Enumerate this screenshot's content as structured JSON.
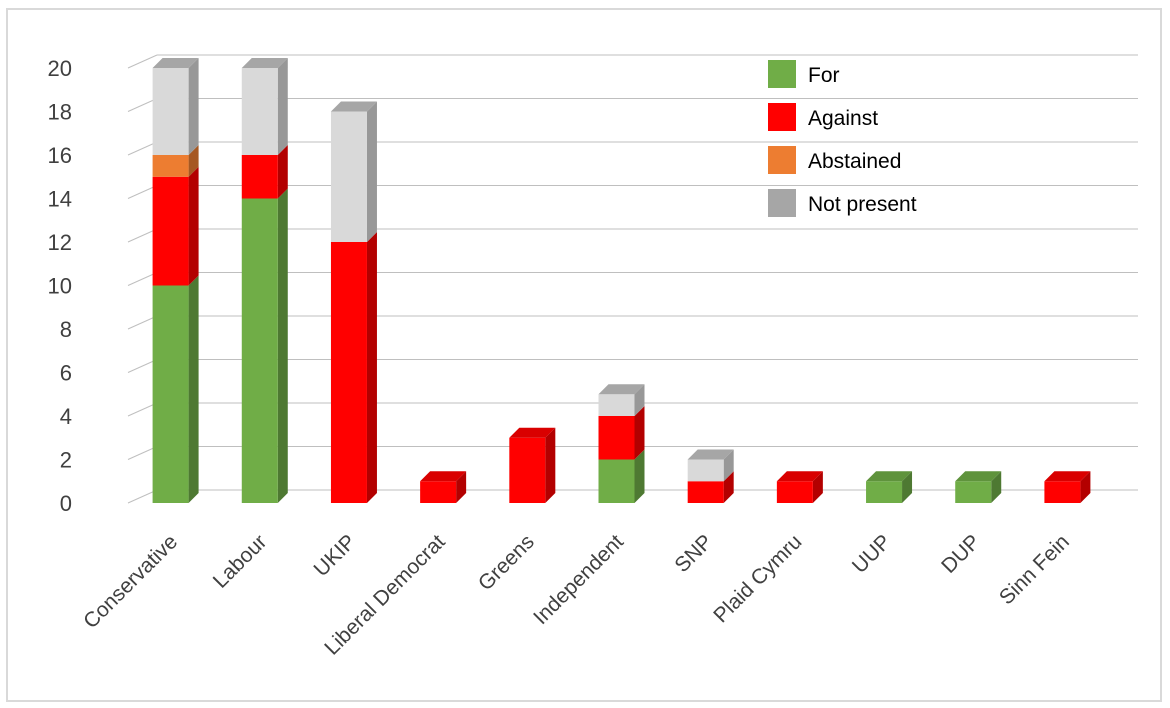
{
  "chart_data": {
    "type": "bar",
    "stacked": true,
    "three_d": true,
    "title": "",
    "xlabel": "",
    "ylabel": "",
    "ylim": [
      0,
      20
    ],
    "ytick_step": 2,
    "grid": true,
    "legend_position": "top-right",
    "categories": [
      "Conservative",
      "Labour",
      "UKIP",
      "Liberal Democrat",
      "Greens",
      "Independent",
      "SNP",
      "Plaid Cymru",
      "UUP",
      "DUP",
      "Sinn Fein"
    ],
    "series": [
      {
        "name": "For",
        "color": "#70ad47",
        "values": [
          10,
          14,
          0,
          0,
          0,
          2,
          0,
          0,
          1,
          1,
          0
        ]
      },
      {
        "name": "Against",
        "color": "#ff0000",
        "values": [
          5,
          2,
          12,
          1,
          3,
          2,
          1,
          1,
          0,
          0,
          1
        ]
      },
      {
        "name": "Abstained",
        "color": "#ed7d31",
        "values": [
          1,
          0,
          0,
          0,
          0,
          0,
          0,
          0,
          0,
          0,
          0
        ]
      },
      {
        "name": "Not present",
        "color": "#d9d9d9",
        "values": [
          4,
          4,
          6,
          0,
          0,
          1,
          1,
          0,
          0,
          0,
          0
        ]
      }
    ],
    "legend_swatch_colors": [
      "#70ad47",
      "#ff0000",
      "#ed7d31",
      "#a6a6a6"
    ]
  }
}
